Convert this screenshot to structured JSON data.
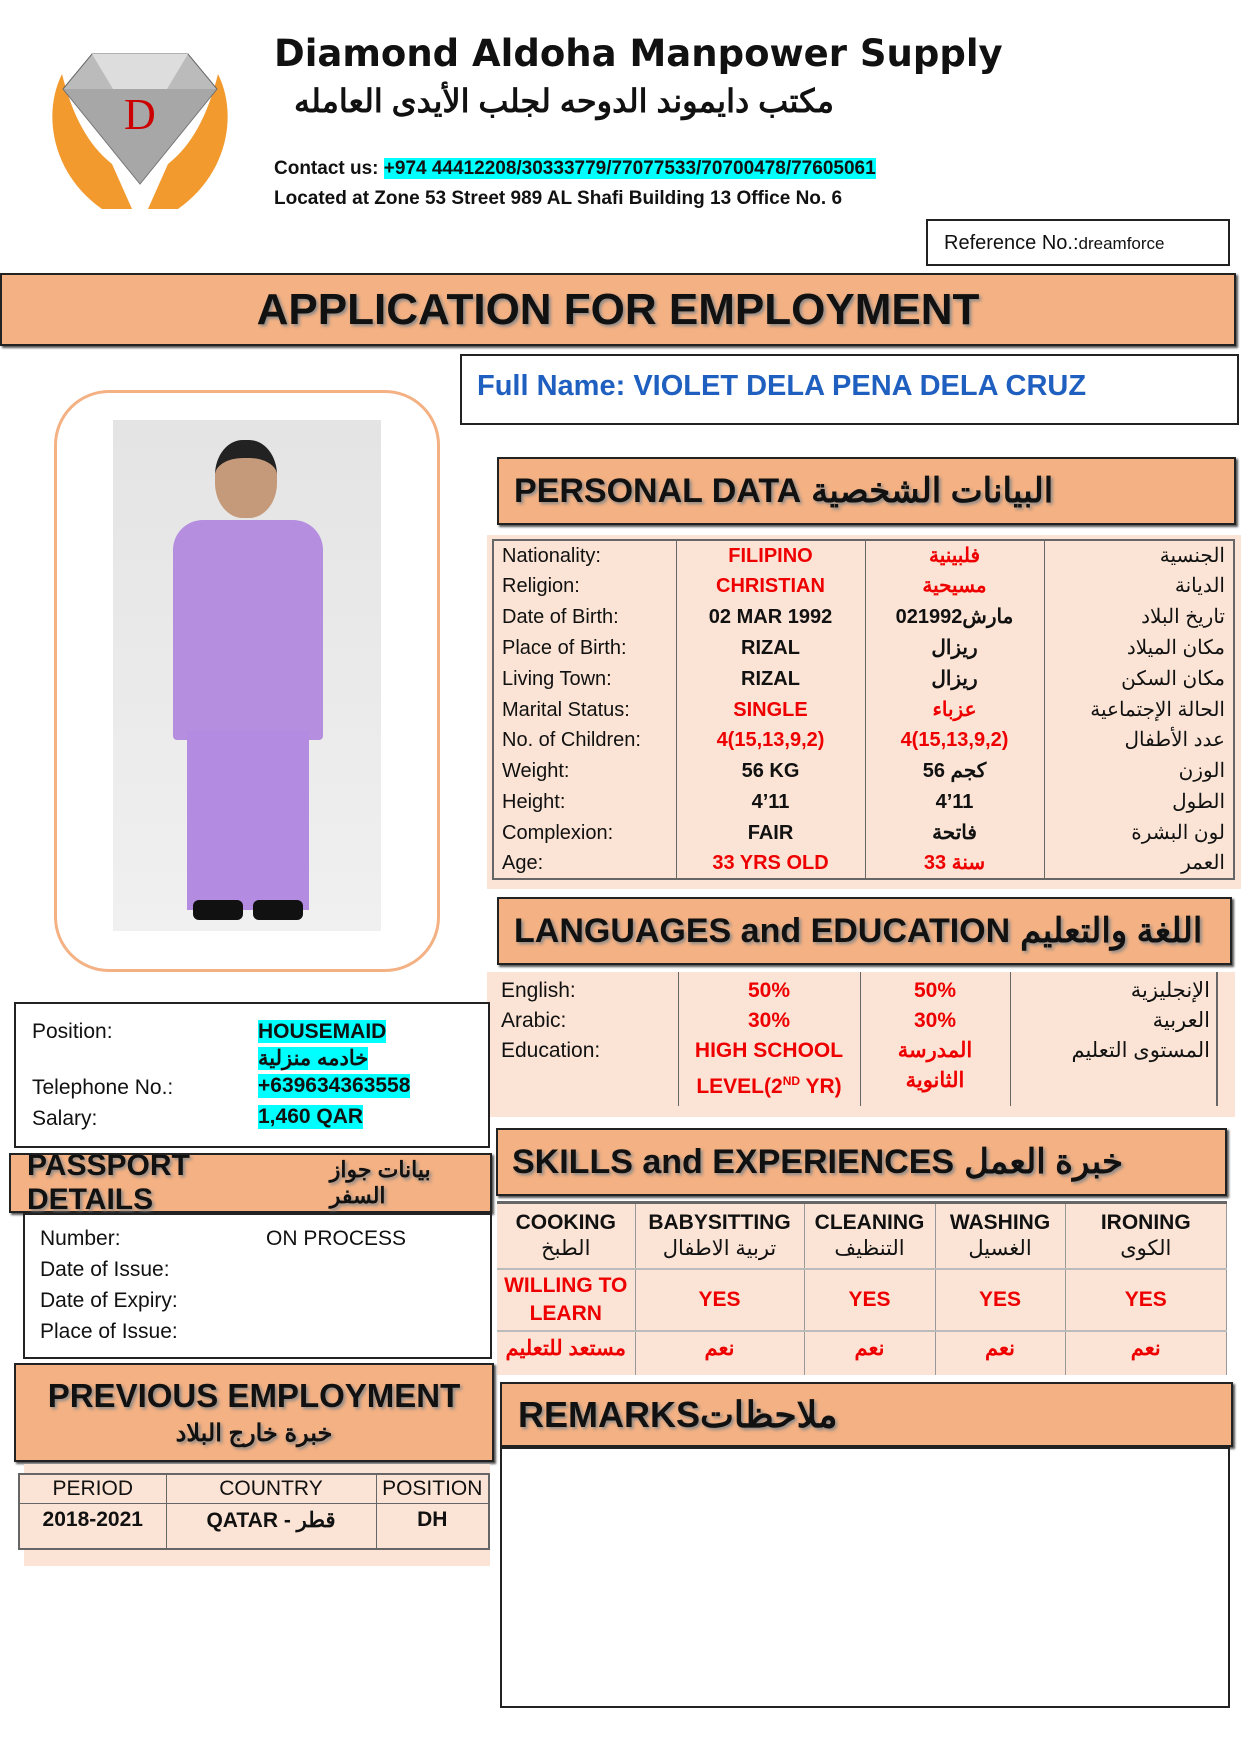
{
  "company": {
    "name_en": "Diamond Aldoha Manpower Supply",
    "name_ar": "مكتب دايموند الدوحه لجلب الأيدى العامله",
    "contact_label": "Contact us:",
    "contact_numbers": "+974 44412208/30333779/77077533/70700478/77605061",
    "address": "Located at Zone 53 Street 989 AL Shafi Building 13 Office No. 6",
    "logo_letters": "DD"
  },
  "reference": {
    "label": "Reference No.:",
    "value": "dreamforce"
  },
  "title": "APPLICATION FOR EMPLOYMENT",
  "full_name": {
    "label": "Full Name:",
    "value": "VIOLET DELA PENA DELA CRUZ"
  },
  "personal": {
    "title_en": "PERSONAL DATA",
    "title_ar": "البيانات الشخصية",
    "rows": [
      {
        "label": "Nationality:",
        "value": "FILIPINO",
        "value_ar": "فلبينية",
        "label_ar": "الجنسية",
        "red": true
      },
      {
        "label": "Religion:",
        "value": "CHRISTIAN",
        "value_ar": "مسيحية",
        "label_ar": "الديانة",
        "red": true
      },
      {
        "label": "Date of Birth:",
        "value": "02 MAR 1992",
        "value_ar": "02مارش1992",
        "label_ar": "تاريخ البلاد",
        "red": false
      },
      {
        "label": "Place of Birth:",
        "value": "RIZAL",
        "value_ar": "ريزال",
        "label_ar": "مكان الميلاد",
        "red": false
      },
      {
        "label": "Living Town:",
        "value": "RIZAL",
        "value_ar": "ريزال",
        "label_ar": "مكان السكن",
        "red": false
      },
      {
        "label": "Marital Status:",
        "value": "SINGLE",
        "value_ar": "عزباء",
        "label_ar": "الحالة الإجتماعية",
        "red": true
      },
      {
        "label": "No. of Children:",
        "value": "4(15,13,9,2)",
        "value_ar": "4(15,13,9,2)",
        "label_ar": "عدد الأطفال",
        "red": true
      },
      {
        "label": "Weight:",
        "value": "56 KG",
        "value_ar": "56 كجم",
        "label_ar": "الوزن",
        "red": false
      },
      {
        "label": "Height:",
        "value": "4’11",
        "value_ar": "4’11",
        "label_ar": "الطول",
        "red": false
      },
      {
        "label": "Complexion:",
        "value": "FAIR",
        "value_ar": "فاتحة",
        "label_ar": "لون البشرة",
        "red": false
      },
      {
        "label": "Age:",
        "value": "33 YRS OLD",
        "value_ar": "33 سنة",
        "label_ar": "العمر",
        "red": true
      }
    ]
  },
  "languages": {
    "title_en": "LANGUAGES and EDUCATION",
    "title_ar": "اللغة والتعليم",
    "rows": [
      {
        "label": "English:",
        "value": "50%",
        "value_ar": "50%",
        "label_ar": "الإنجليزية"
      },
      {
        "label": "Arabic:",
        "value": "30%",
        "value_ar": "30%",
        "label_ar": "العربية"
      },
      {
        "label": "Education:",
        "value": "HIGH SCHOOL",
        "value2": "LEVEL(2",
        "sup": "ND",
        "value3": " YR)",
        "value_ar": "المدرسة",
        "value_ar2": "الثانوية",
        "label_ar": "المستوى التعليم"
      }
    ]
  },
  "job": {
    "position_label": "Position:",
    "position": "HOUSEMAID",
    "position_ar": "خادمه منزلية",
    "phone_label": "Telephone No.:",
    "phone": "+639634363558",
    "salary_label": "Salary:",
    "salary": "1,460 QAR"
  },
  "passport": {
    "title_en": "PASSPORT DETAILS",
    "title_ar": "بيانات جواز السفر",
    "number_label": "Number:",
    "number": "ON PROCESS",
    "issue_label": "Date of Issue:",
    "expiry_label": "Date of Expiry:",
    "place_label": "Place of Issue:"
  },
  "skills": {
    "title_en": "SKILLS and EXPERIENCES",
    "title_ar": "خبرة العمل",
    "items": [
      {
        "en": "COOKING",
        "ar": "الطبخ",
        "value": "WILLING TO LEARN",
        "value_ar": "مستعد للتعليم"
      },
      {
        "en": "BABYSITTING",
        "ar": "تربية الاطفال",
        "value": "YES",
        "value_ar": "نعم"
      },
      {
        "en": "CLEANING",
        "ar": "التنظيف",
        "value": "YES",
        "value_ar": "نعم"
      },
      {
        "en": "WASHING",
        "ar": "الغسيل",
        "value": "YES",
        "value_ar": "نعم"
      },
      {
        "en": "IRONING",
        "ar": "الكوى",
        "value": "YES",
        "value_ar": "نعم"
      }
    ]
  },
  "previous": {
    "title_en": "PREVIOUS EMPLOYMENT",
    "title_ar": "خبرة خارج البلاد",
    "headers": [
      "PERIOD",
      "COUNTRY",
      "POSITION"
    ],
    "rows": [
      [
        "2018-2021",
        "QATAR - قطر",
        "DH"
      ]
    ]
  },
  "remarks": {
    "title_en": "REMARKS",
    "title_ar": "ملاحظات"
  },
  "colors": {
    "header": "#f4b183",
    "table_bg": "#fbe4d5",
    "highlight": "#00ffff",
    "red": "#ee0000",
    "name_blue": "#1f5fbf"
  }
}
